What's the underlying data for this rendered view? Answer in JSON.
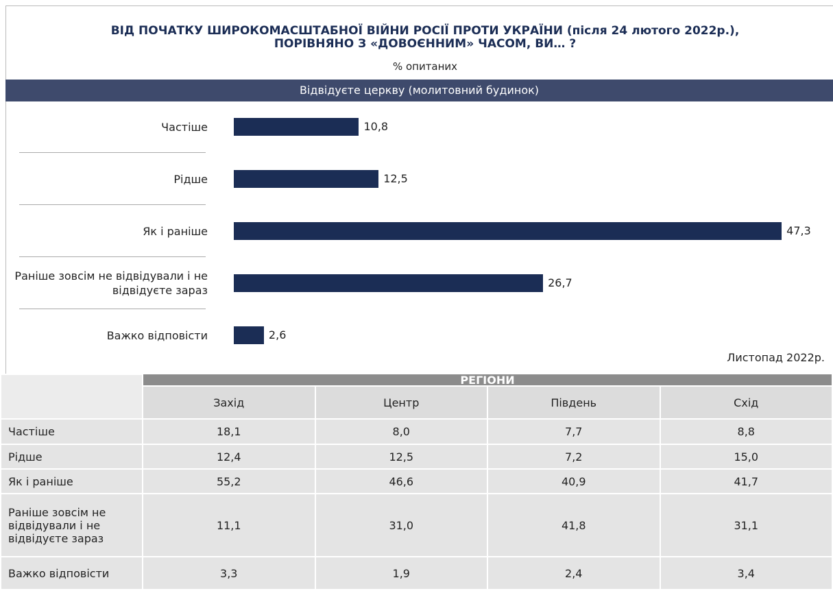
{
  "chart_data": {
    "type": "hbar",
    "title": [
      "ВІД ПОЧАТКУ ШИРОКОМАСШТАБНОЇ ВІЙНИ РОСІЇ ПРОТИ УКРАЇНИ (після 24 лютого 2022р.),",
      "ПОРІВНЯНО З «ДОВОЄННИМ» ЧАСОМ, ВИ… ?"
    ],
    "subtitle": "% опитаних",
    "panel_title": "Відвідуєте церкву (молитовний будинок)",
    "categories": [
      "Частіше",
      "Рідше",
      "Як і раніше",
      "Раніше зовсім не відвідували і не відвідуєте зараз",
      "Важко відповісти"
    ],
    "values": [
      10.8,
      12.5,
      47.3,
      26.7,
      2.6
    ],
    "value_labels": [
      "10,8",
      "12,5",
      "47,3",
      "26,7",
      "2,6"
    ],
    "color": "#1b2d55",
    "xlim": [
      0,
      48
    ],
    "note": "Листопад 2022р."
  },
  "table": {
    "group_header": "РЕГІОНИ",
    "columns": [
      "Захід",
      "Центр",
      "Південь",
      "Схід"
    ],
    "rows": [
      {
        "label": "Частіше",
        "values": [
          "18,1",
          "8,0",
          "7,7",
          "8,8"
        ]
      },
      {
        "label": "Рідше",
        "values": [
          "12,4",
          "12,5",
          "7,2",
          "15,0"
        ]
      },
      {
        "label": "Як і раніше",
        "values": [
          "55,2",
          "46,6",
          "40,9",
          "41,7"
        ]
      },
      {
        "label": "Раніше зовсім не відвідували і не відвідуєте зараз",
        "values": [
          "11,1",
          "31,0",
          "41,8",
          "31,1"
        ]
      },
      {
        "label": "Важко відповісти",
        "values": [
          "3,3",
          "1,9",
          "2,4",
          "3,4"
        ]
      }
    ]
  }
}
